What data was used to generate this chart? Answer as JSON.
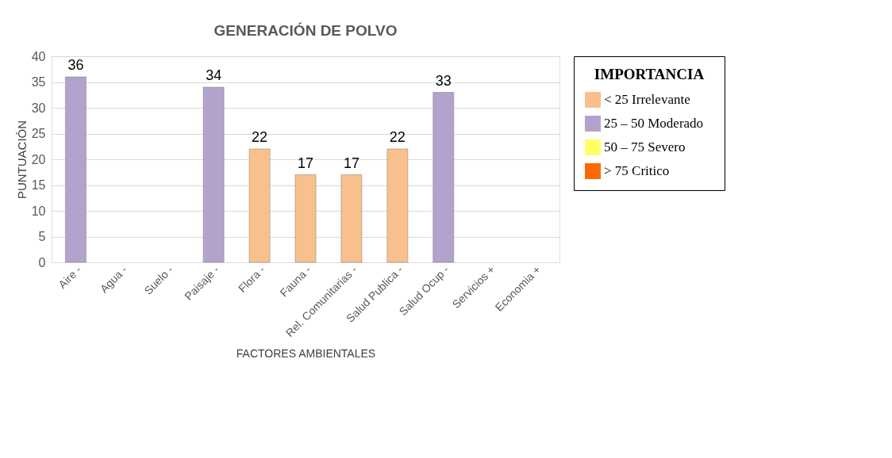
{
  "chart_data": {
    "type": "bar",
    "title": "GENERACIÓN DE POLVO",
    "xlabel": "FACTORES AMBIENTALES",
    "ylabel": "PUNTUACIÓN",
    "legend_title": "IMPORTANCIA",
    "categories": [
      "Aire -",
      "Agua -",
      "Suelo -",
      "Paisaje -",
      "Flora -",
      "Fauna -",
      "Rel. Comunitarias -",
      "Salud Publica -",
      "Salud Ocup -",
      "Servicios +",
      "Economia +"
    ],
    "series": [
      {
        "name": "< 25    Irrelevante",
        "color": "#f9c08e",
        "values": [
          null,
          null,
          null,
          null,
          22,
          17,
          17,
          22,
          null,
          null,
          null
        ]
      },
      {
        "name": "25 – 50    Moderado",
        "color": "#b3a2cc",
        "values": [
          36,
          null,
          null,
          34,
          null,
          null,
          null,
          null,
          33,
          null,
          null
        ]
      },
      {
        "name": "50 – 75    Severo",
        "color": "#ffff66",
        "values": [
          null,
          null,
          null,
          null,
          null,
          null,
          null,
          null,
          null,
          null,
          null
        ]
      },
      {
        "name": "> 75    Critico",
        "color": "#ff6a00",
        "values": [
          null,
          null,
          null,
          null,
          null,
          null,
          null,
          null,
          null,
          null,
          null
        ]
      }
    ],
    "ylim": [
      0,
      40
    ],
    "yticks": [
      0,
      5,
      10,
      15,
      20,
      25,
      30,
      35,
      40
    ],
    "grid": "y",
    "legend": "right",
    "data_labels": true
  }
}
